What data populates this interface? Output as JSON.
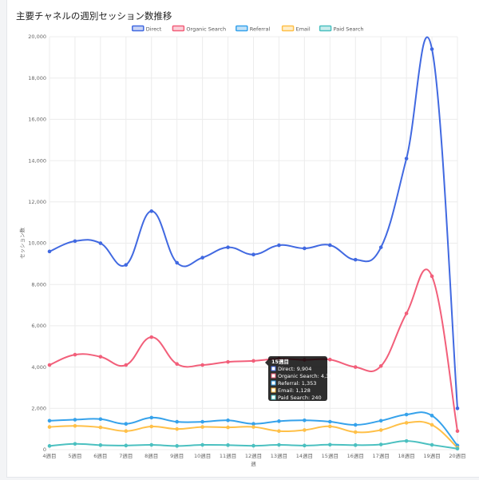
{
  "chart_data": {
    "type": "line",
    "title": "主要チャネルの週別セッション数推移",
    "xlabel": "週",
    "ylabel": "セッション数",
    "ylim": [
      0,
      20000
    ],
    "yticks": [
      0,
      2000,
      4000,
      6000,
      8000,
      10000,
      12000,
      14000,
      16000,
      18000,
      20000
    ],
    "ytick_labels": [
      "0",
      "2,000",
      "4,000",
      "6,000",
      "8,000",
      "10,000",
      "12,000",
      "14,000",
      "16,000",
      "18,000",
      "20,000"
    ],
    "categories": [
      "4週目",
      "5週目",
      "6週目",
      "7週目",
      "8週目",
      "9週目",
      "10週目",
      "11週目",
      "12週目",
      "13週目",
      "14週目",
      "15週目",
      "16週目",
      "17週目",
      "18週目",
      "19週目",
      "20週目"
    ],
    "grid": true,
    "legend_position": "top",
    "series": [
      {
        "name": "Direct",
        "color": "#4169e1",
        "fill": "#c9d4f5",
        "values": [
          9600,
          10100,
          10000,
          8950,
          11550,
          9050,
          9300,
          9800,
          9450,
          9900,
          9750,
          9904,
          9200,
          9800,
          14100,
          19400,
          2000
        ]
      },
      {
        "name": "Organic Search",
        "color": "#f25f7a",
        "fill": "#fbcfd8",
        "values": [
          4100,
          4600,
          4500,
          4100,
          5450,
          4150,
          4100,
          4250,
          4300,
          4400,
          4350,
          4363,
          4000,
          4050,
          6600,
          8400,
          900
        ]
      },
      {
        "name": "Referral",
        "color": "#36a2eb",
        "fill": "#c2e2f8",
        "values": [
          1400,
          1450,
          1480,
          1250,
          1550,
          1350,
          1350,
          1420,
          1250,
          1380,
          1420,
          1353,
          1200,
          1400,
          1700,
          1650,
          200
        ]
      },
      {
        "name": "Email",
        "color": "#ffc048",
        "fill": "#ffeec9",
        "values": [
          1100,
          1150,
          1080,
          900,
          1120,
          1000,
          1100,
          1080,
          1100,
          900,
          950,
          1128,
          850,
          950,
          1300,
          1200,
          100
        ]
      },
      {
        "name": "Paid Search",
        "color": "#4bc0c0",
        "fill": "#c9ecec",
        "values": [
          180,
          280,
          220,
          200,
          230,
          180,
          230,
          220,
          190,
          230,
          200,
          240,
          220,
          250,
          420,
          230,
          50
        ]
      }
    ],
    "tooltip": {
      "title": "15週目",
      "lines": [
        "Direct: 9,904",
        "Organic Search: 4,363",
        "Referral: 1,353",
        "Email: 1,128",
        "Paid Search: 240"
      ],
      "colors": [
        "#4169e1",
        "#f25f7a",
        "#36a2eb",
        "#ffc048",
        "#4bc0c0"
      ]
    }
  }
}
